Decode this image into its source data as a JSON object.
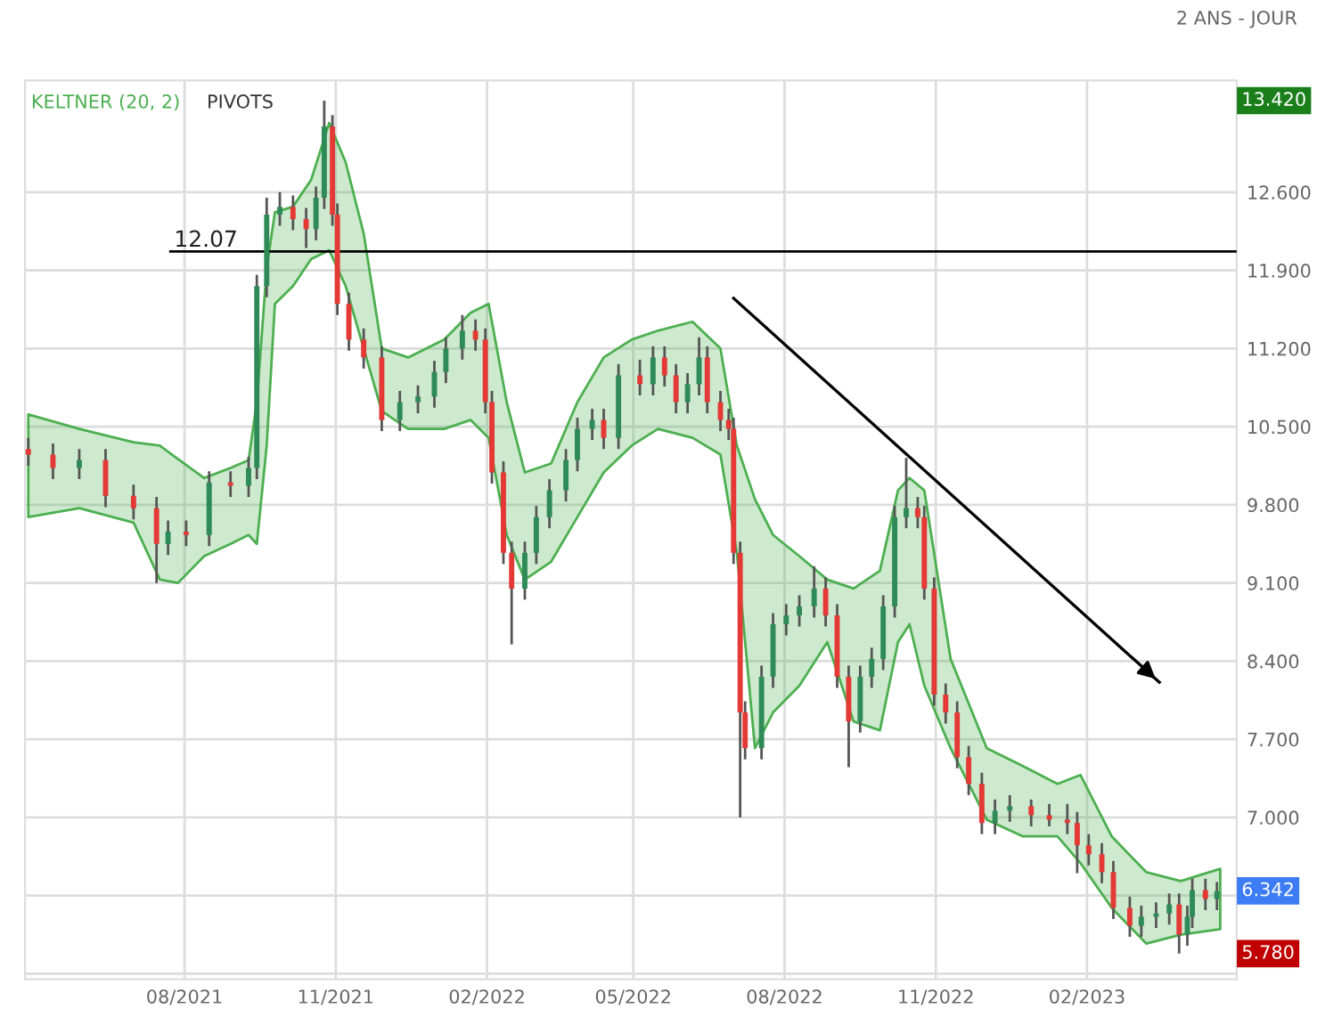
{
  "chart_data": {
    "type": "candlestick",
    "subtitle": "2 ANS - JOUR",
    "annotations": [
      "PIVOTS",
      "13.420",
      "6.342",
      "5.780"
    ],
    "x": [
      "2021-04-28",
      "2021-05-13",
      "2021-05-29",
      "2021-06-14",
      "2021-07-01",
      "2021-07-15",
      "2021-07-22",
      "2021-08-02",
      "2021-08-16",
      "2021-08-29",
      "2021-09-09",
      "2021-09-14",
      "2021-09-20",
      "2021-09-28",
      "2021-10-06",
      "2021-10-14",
      "2021-10-20",
      "2021-10-25",
      "2021-10-30",
      "2021-11-02",
      "2021-11-09",
      "2021-11-18",
      "2021-11-29",
      "2021-12-10",
      "2021-12-21",
      "2021-12-31",
      "2022-01-07",
      "2022-01-17",
      "2022-01-25",
      "2022-01-31",
      "2022-02-04",
      "2022-02-11",
      "2022-02-16",
      "2022-02-24",
      "2022-03-03",
      "2022-03-11",
      "2022-03-21",
      "2022-03-28",
      "2022-04-06",
      "2022-04-13",
      "2022-04-22",
      "2022-05-05",
      "2022-05-13",
      "2022-05-20",
      "2022-05-27",
      "2022-06-03",
      "2022-06-10",
      "2022-06-15",
      "2022-06-23",
      "2022-06-28",
      "2022-07-01",
      "2022-07-05",
      "2022-07-08",
      "2022-07-18",
      "2022-07-25",
      "2022-08-02",
      "2022-08-10",
      "2022-08-19",
      "2022-08-26",
      "2022-09-02",
      "2022-09-09",
      "2022-09-16",
      "2022-09-23",
      "2022-09-30",
      "2022-10-07",
      "2022-10-14",
      "2022-10-21",
      "2022-10-25",
      "2022-10-31",
      "2022-11-07",
      "2022-11-14",
      "2022-11-21",
      "2022-11-29",
      "2022-12-07",
      "2022-12-16",
      "2022-12-29",
      "2023-01-09",
      "2023-01-20",
      "2023-01-26",
      "2023-02-02",
      "2023-02-10",
      "2023-02-17",
      "2023-02-27",
      "2023-03-06",
      "2023-03-15",
      "2023-03-23",
      "2023-03-29",
      "2023-04-03",
      "2023-04-06",
      "2023-04-14",
      "2023-04-21"
    ],
    "ohlc": [
      [
        10.3,
        10.4,
        10.15,
        10.25
      ],
      [
        10.25,
        10.35,
        10.03,
        10.13
      ],
      [
        10.13,
        10.3,
        10.03,
        10.2
      ],
      [
        10.2,
        10.3,
        9.78,
        9.88
      ],
      [
        9.88,
        9.98,
        9.67,
        9.77
      ],
      [
        9.77,
        9.87,
        9.1,
        9.45
      ],
      [
        9.45,
        9.66,
        9.35,
        9.56
      ],
      [
        9.56,
        9.66,
        9.43,
        9.53
      ],
      [
        9.53,
        10.1,
        9.43,
        10.0
      ],
      [
        10.0,
        10.1,
        9.87,
        9.97
      ],
      [
        9.97,
        10.23,
        9.87,
        10.13
      ],
      [
        10.13,
        11.86,
        10.03,
        11.76
      ],
      [
        11.76,
        12.55,
        11.66,
        12.4
      ],
      [
        12.4,
        12.6,
        12.3,
        12.47
      ],
      [
        12.47,
        12.57,
        12.26,
        12.36
      ],
      [
        12.36,
        12.46,
        12.1,
        12.27
      ],
      [
        12.27,
        12.65,
        12.17,
        12.55
      ],
      [
        12.55,
        13.42,
        12.45,
        13.19
      ],
      [
        13.19,
        13.29,
        12.3,
        12.4
      ],
      [
        12.4,
        12.5,
        11.5,
        11.6
      ],
      [
        11.6,
        11.7,
        11.18,
        11.28
      ],
      [
        11.28,
        11.38,
        11.02,
        11.12
      ],
      [
        11.12,
        11.22,
        10.46,
        10.56
      ],
      [
        10.56,
        10.82,
        10.46,
        10.72
      ],
      [
        10.72,
        10.87,
        10.62,
        10.77
      ],
      [
        10.77,
        11.09,
        10.67,
        10.99
      ],
      [
        10.99,
        11.3,
        10.89,
        11.2
      ],
      [
        11.2,
        11.5,
        11.1,
        11.36
      ],
      [
        11.36,
        11.46,
        11.18,
        11.28
      ],
      [
        11.28,
        11.38,
        10.62,
        10.72
      ],
      [
        10.72,
        10.82,
        9.99,
        10.09
      ],
      [
        10.09,
        10.19,
        9.27,
        9.37
      ],
      [
        9.37,
        9.47,
        8.55,
        9.05
      ],
      [
        9.05,
        9.47,
        8.95,
        9.37
      ],
      [
        9.37,
        9.79,
        9.27,
        9.69
      ],
      [
        9.69,
        10.03,
        9.59,
        9.93
      ],
      [
        9.93,
        10.3,
        9.83,
        10.2
      ],
      [
        10.2,
        10.58,
        10.1,
        10.48
      ],
      [
        10.48,
        10.66,
        10.38,
        10.56
      ],
      [
        10.56,
        10.66,
        10.3,
        10.4
      ],
      [
        10.4,
        11.06,
        10.3,
        10.96
      ],
      [
        10.96,
        11.1,
        10.78,
        10.88
      ],
      [
        10.88,
        11.22,
        10.78,
        11.12
      ],
      [
        11.12,
        11.22,
        10.86,
        10.96
      ],
      [
        10.96,
        11.06,
        10.62,
        10.72
      ],
      [
        10.72,
        10.98,
        10.62,
        10.88
      ],
      [
        10.88,
        11.3,
        10.78,
        11.12
      ],
      [
        11.12,
        11.22,
        10.62,
        10.72
      ],
      [
        10.72,
        10.82,
        10.46,
        10.56
      ],
      [
        10.56,
        10.66,
        10.38,
        10.48
      ],
      [
        10.48,
        10.58,
        9.27,
        9.37
      ],
      [
        9.37,
        9.47,
        7.0,
        7.94
      ],
      [
        7.94,
        8.04,
        7.52,
        7.62
      ],
      [
        7.62,
        8.36,
        7.52,
        8.26
      ],
      [
        8.26,
        8.83,
        8.16,
        8.73
      ],
      [
        8.73,
        8.91,
        8.63,
        8.81
      ],
      [
        8.81,
        8.99,
        8.71,
        8.89
      ],
      [
        8.89,
        9.25,
        8.79,
        9.05
      ],
      [
        9.05,
        9.15,
        8.71,
        8.81
      ],
      [
        8.81,
        8.91,
        8.16,
        8.26
      ],
      [
        8.26,
        8.36,
        7.45,
        7.86
      ],
      [
        7.86,
        8.36,
        7.76,
        8.26
      ],
      [
        8.26,
        8.52,
        8.16,
        8.42
      ],
      [
        8.42,
        8.99,
        8.32,
        8.89
      ],
      [
        8.89,
        9.79,
        8.79,
        9.69
      ],
      [
        9.69,
        10.22,
        9.59,
        9.77
      ],
      [
        9.77,
        9.87,
        9.59,
        9.69
      ],
      [
        9.69,
        9.79,
        8.95,
        9.05
      ],
      [
        9.05,
        9.15,
        8.0,
        8.1
      ],
      [
        8.1,
        8.2,
        7.84,
        7.94
      ],
      [
        7.94,
        8.04,
        7.44,
        7.54
      ],
      [
        7.54,
        7.64,
        7.2,
        7.3
      ],
      [
        7.3,
        7.4,
        6.85,
        6.95
      ],
      [
        6.95,
        7.16,
        6.85,
        7.06
      ],
      [
        7.06,
        7.2,
        6.96,
        7.1
      ],
      [
        7.1,
        7.16,
        6.92,
        7.02
      ],
      [
        7.02,
        7.12,
        6.92,
        6.98
      ],
      [
        6.98,
        7.12,
        6.85,
        6.95
      ],
      [
        6.95,
        7.05,
        6.5,
        6.75
      ],
      [
        6.75,
        6.85,
        6.57,
        6.67
      ],
      [
        6.67,
        6.77,
        6.41,
        6.51
      ],
      [
        6.51,
        6.61,
        6.09,
        6.19
      ],
      [
        6.19,
        6.29,
        5.93,
        6.03
      ],
      [
        6.03,
        6.21,
        5.93,
        6.11
      ],
      [
        6.11,
        6.24,
        6.01,
        6.14
      ],
      [
        6.14,
        6.32,
        6.04,
        6.22
      ],
      [
        6.22,
        6.32,
        5.78,
        5.95
      ],
      [
        5.95,
        6.21,
        5.85,
        6.11
      ],
      [
        6.11,
        6.45,
        6.01,
        6.35
      ],
      [
        6.35,
        6.45,
        6.17,
        6.27
      ],
      [
        6.27,
        6.42,
        6.17,
        6.34
      ]
    ],
    "series": [
      {
        "name": "KELTNER (20, 2)",
        "type": "line",
        "color": "#4caf50",
        "x": [
          "2021-04-28",
          "2021-05-29",
          "2021-07-01",
          "2021-07-17",
          "2021-07-28",
          "2021-08-13",
          "2021-08-29",
          "2021-09-09",
          "2021-09-14",
          "2021-09-20",
          "2021-09-25",
          "2021-10-06",
          "2021-10-17",
          "2021-10-28",
          "2021-11-07",
          "2021-11-18",
          "2021-11-29",
          "2021-12-15",
          "2022-01-06",
          "2022-01-22",
          "2022-02-02",
          "2022-02-13",
          "2022-02-24",
          "2022-03-12",
          "2022-03-28",
          "2022-04-13",
          "2022-04-30",
          "2022-05-16",
          "2022-06-06",
          "2022-06-23",
          "2022-07-03",
          "2022-07-14",
          "2022-07-25",
          "2022-08-10",
          "2022-08-27",
          "2022-09-12",
          "2022-09-28",
          "2022-10-09",
          "2022-10-16",
          "2022-10-25",
          "2022-11-10",
          "2022-12-02",
          "2022-12-24",
          "2023-01-14",
          "2023-01-28",
          "2023-02-16",
          "2023-03-09",
          "2023-03-30",
          "2023-04-23"
        ],
        "values": [
          null,
          null,
          null,
          null,
          null,
          null,
          null,
          null,
          null,
          null,
          null,
          null,
          null,
          null,
          null,
          null,
          null,
          null,
          null,
          null,
          null,
          null,
          null,
          null,
          null,
          null,
          null,
          null,
          null,
          null,
          null,
          null,
          null,
          null,
          null,
          null,
          null,
          null,
          null,
          null,
          null,
          null,
          null,
          null,
          null,
          null,
          null,
          null,
          null
        ],
        "upper": [
          10.61,
          10.48,
          10.36,
          10.33,
          10.21,
          10.04,
          10.13,
          10.2,
          10.72,
          11.92,
          12.42,
          12.47,
          12.71,
          13.22,
          12.87,
          12.23,
          11.2,
          11.12,
          11.28,
          11.52,
          11.6,
          10.72,
          10.09,
          10.17,
          10.72,
          11.12,
          11.28,
          11.36,
          11.44,
          11.2,
          10.33,
          9.85,
          9.53,
          9.34,
          9.13,
          9.05,
          9.21,
          9.93,
          10.04,
          9.93,
          8.42,
          7.62,
          7.46,
          7.3,
          7.38,
          6.83,
          6.51,
          6.43,
          6.54
        ],
        "lower": [
          9.69,
          9.77,
          9.64,
          9.13,
          9.1,
          9.34,
          9.45,
          9.53,
          9.45,
          10.33,
          11.6,
          11.76,
          12.0,
          12.08,
          11.76,
          11.2,
          10.64,
          10.48,
          10.48,
          10.56,
          10.4,
          9.53,
          9.13,
          9.29,
          9.69,
          10.09,
          10.33,
          10.48,
          10.4,
          10.25,
          9.37,
          7.62,
          7.94,
          8.18,
          8.57,
          7.86,
          7.78,
          8.57,
          8.73,
          8.18,
          7.62,
          6.98,
          6.83,
          6.83,
          6.59,
          6.19,
          5.87,
          5.95,
          6.0
        ]
      },
      {
        "type": "line",
        "color": "#000000",
        "x": [
          "2022-07-01",
          "2023-03-17"
        ],
        "values": [
          11.65,
          8.21
        ]
      }
    ],
    "ref_lines": [
      {
        "axis": "y",
        "value": 12.07,
        "label": "12.07",
        "color": "#000000"
      }
    ],
    "xlim": [
      "2021-04-26",
      "2023-05-03"
    ],
    "xticks": [
      {
        "value": "2021-08-01",
        "label": "08/2021"
      },
      {
        "value": "2021-11-01",
        "label": "11/2021"
      },
      {
        "value": "2022-02-01",
        "label": "02/2022"
      },
      {
        "value": "2022-05-01",
        "label": "05/2022"
      },
      {
        "value": "2022-08-01",
        "label": "08/2022"
      },
      {
        "value": "2022-11-01",
        "label": "11/2022"
      },
      {
        "value": "2023-02-01",
        "label": "02/2023"
      }
    ],
    "ylim": [
      5.55,
      13.6
    ],
    "yticks": [
      {
        "value": 5.6,
        "label": null
      },
      {
        "value": 6.3,
        "label": null
      },
      {
        "value": 7.0,
        "label": "7.000"
      },
      {
        "value": 7.7,
        "label": "7.700"
      },
      {
        "value": 8.4,
        "label": "8.400"
      },
      {
        "value": 9.1,
        "label": "9.100"
      },
      {
        "value": 9.8,
        "label": "9.800"
      },
      {
        "value": 10.5,
        "label": "10.500"
      },
      {
        "value": 11.2,
        "label": "11.200"
      },
      {
        "value": 11.9,
        "label": "11.900"
      },
      {
        "value": 12.6,
        "label": "12.600"
      }
    ],
    "grid": true,
    "legend": "top left"
  }
}
